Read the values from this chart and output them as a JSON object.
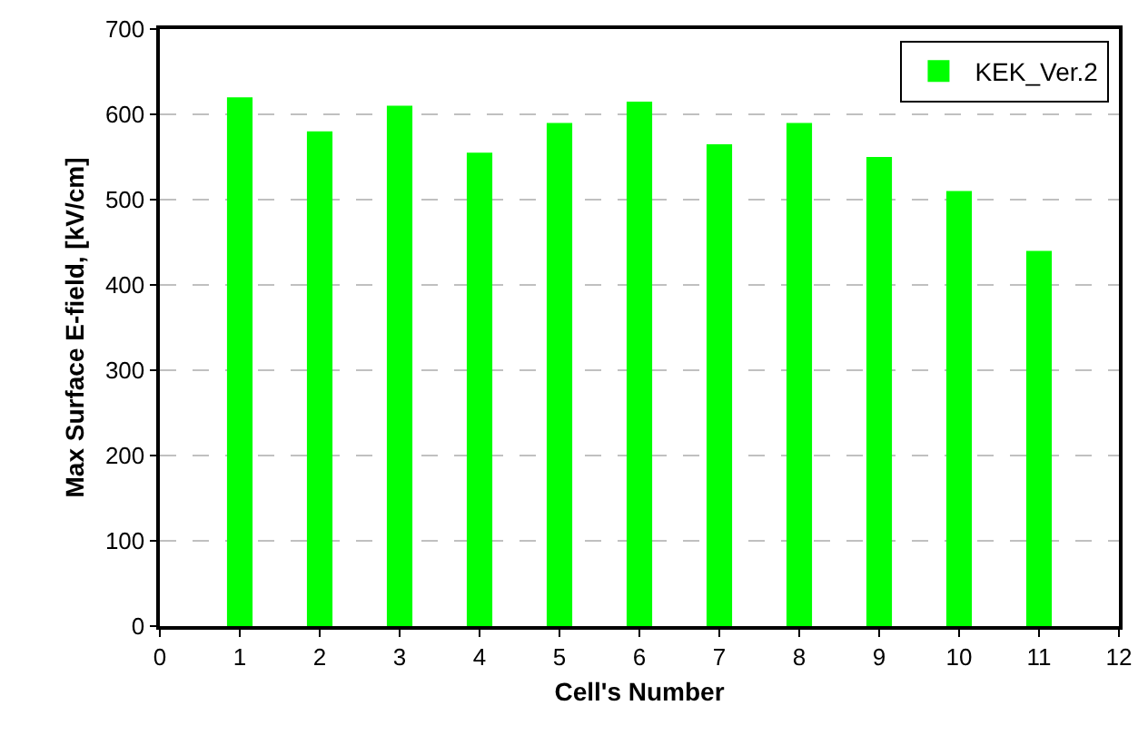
{
  "chart_data": {
    "type": "bar",
    "x": [
      1,
      2,
      3,
      4,
      5,
      6,
      7,
      8,
      9,
      10,
      11
    ],
    "series": [
      {
        "name": "KEK_Ver.2",
        "color": "#00ff00",
        "values": [
          620,
          580,
          610,
          555,
          590,
          615,
          565,
          590,
          550,
          510,
          440
        ]
      }
    ],
    "xlabel": "Cell's Number",
    "ylabel": "Max Surface E-field, [kV/cm]",
    "xlim": [
      0,
      12
    ],
    "xticks": [
      0,
      1,
      2,
      3,
      4,
      5,
      6,
      7,
      8,
      9,
      10,
      11,
      12
    ],
    "ylim": [
      0,
      700
    ],
    "yticks": [
      0,
      100,
      200,
      300,
      400,
      500,
      600,
      700
    ],
    "grid": "y",
    "legend": "top right"
  }
}
